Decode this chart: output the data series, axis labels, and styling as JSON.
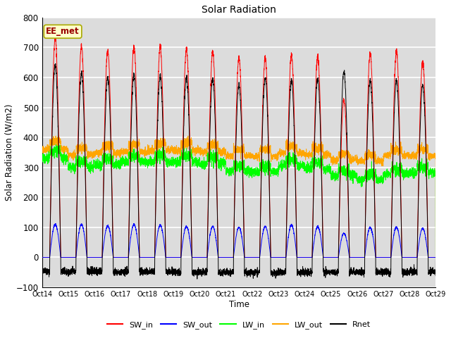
{
  "title": "Solar Radiation",
  "xlabel": "Time",
  "ylabel": "Solar Radiation (W/m2)",
  "ylim": [
    -100,
    800
  ],
  "n_days": 15,
  "xtick_labels": [
    "Oct 14",
    "Oct 15",
    "Oct 16",
    "Oct 17",
    "Oct 18",
    "Oct 19",
    "Oct 20",
    "Oct 21",
    "Oct 22",
    "Oct 23",
    "Oct 24",
    "Oct 25",
    "Oct 26",
    "Oct 27",
    "Oct 28",
    "Oct 29"
  ],
  "legend_labels": [
    "SW_in",
    "SW_out",
    "LW_in",
    "LW_out",
    "Rnet"
  ],
  "legend_colors": [
    "#ff0000",
    "#0000ff",
    "#00ff00",
    "#ffa500",
    "#000000"
  ],
  "station_label": "EE_met",
  "background_color": "#dcdcdc",
  "grid_color": "#ffffff",
  "SW_in_peaks": [
    730,
    705,
    690,
    705,
    700,
    695,
    685,
    665,
    665,
    675,
    670,
    525,
    680,
    685,
    655
  ],
  "SW_out_peaks": [
    110,
    110,
    105,
    110,
    107,
    103,
    103,
    100,
    103,
    107,
    103,
    80,
    100,
    100,
    97
  ],
  "LW_in_base": [
    355,
    320,
    330,
    340,
    340,
    340,
    335,
    305,
    305,
    325,
    315,
    290,
    275,
    295,
    300
  ],
  "LW_in_night": [
    330,
    300,
    310,
    320,
    318,
    318,
    312,
    288,
    285,
    305,
    295,
    272,
    258,
    278,
    282
  ],
  "LW_out_base": [
    385,
    365,
    370,
    375,
    380,
    380,
    375,
    360,
    360,
    370,
    365,
    345,
    340,
    360,
    360
  ],
  "LW_out_night": [
    360,
    342,
    348,
    352,
    357,
    357,
    352,
    338,
    337,
    348,
    342,
    325,
    320,
    340,
    338
  ],
  "Rnet_peaks": [
    640,
    615,
    600,
    610,
    605,
    600,
    595,
    575,
    600,
    590,
    595,
    620,
    590,
    590,
    575
  ],
  "Rnet_night": [
    -48,
    -48,
    -48,
    -48,
    -48,
    -50,
    -50,
    -50,
    -50,
    -50,
    -50,
    -50,
    -50,
    -50,
    -48
  ]
}
